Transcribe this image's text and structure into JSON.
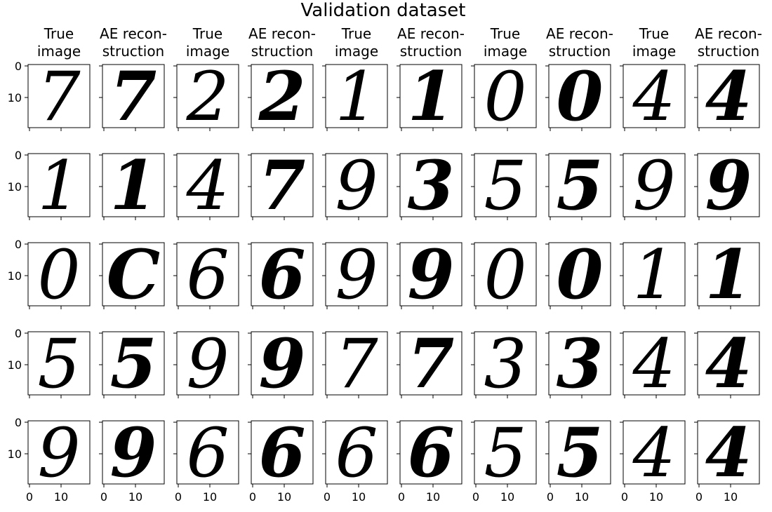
{
  "figure": {
    "title": "Validation dataset",
    "column_titles": [
      [
        "True",
        "image"
      ],
      [
        "AE recon-",
        "struction"
      ],
      [
        "True",
        "image"
      ],
      [
        "AE recon-",
        "struction"
      ],
      [
        "True",
        "image"
      ],
      [
        "AE recon-",
        "struction"
      ],
      [
        "True",
        "image"
      ],
      [
        "AE recon-",
        "struction"
      ],
      [
        "True",
        "image"
      ],
      [
        "AE recon-",
        "struction"
      ]
    ],
    "y_tick_labels": [
      "0",
      "10"
    ],
    "x_tick_labels": [
      "0",
      "10"
    ],
    "digits": [
      [
        "7",
        "7",
        "2",
        "2",
        "1",
        "1",
        "0",
        "0",
        "4",
        "4"
      ],
      [
        "1",
        "1",
        "4",
        "7",
        "9",
        "3",
        "5",
        "5",
        "9",
        "9"
      ],
      [
        "0",
        "C",
        "6",
        "6",
        "9",
        "9",
        "0",
        "0",
        "1",
        "1"
      ],
      [
        "5",
        "5",
        "9",
        "9",
        "7",
        "7",
        "3",
        "3",
        "4",
        "4"
      ],
      [
        "9",
        "9",
        "6",
        "6",
        "6",
        "6",
        "5",
        "5",
        "4",
        "4"
      ]
    ],
    "image_kind": "handwritten digit grid, grayscale",
    "colors": {
      "ink": "#000000",
      "background": "#ffffff"
    }
  }
}
